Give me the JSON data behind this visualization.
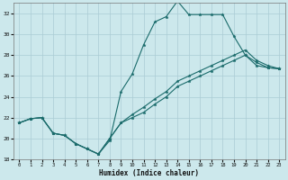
{
  "xlabel": "Humidex (Indice chaleur)",
  "bg_color": "#cce8ec",
  "grid_color": "#aaccd4",
  "line_color": "#1a6b6b",
  "xlim": [
    -0.5,
    23.5
  ],
  "ylim": [
    18,
    33
  ],
  "xticks": [
    0,
    1,
    2,
    3,
    4,
    5,
    6,
    7,
    8,
    9,
    10,
    11,
    12,
    13,
    14,
    15,
    16,
    17,
    18,
    19,
    20,
    21,
    22,
    23
  ],
  "yticks": [
    18,
    20,
    22,
    24,
    26,
    28,
    30,
    32
  ],
  "line1_x": [
    0,
    1,
    2,
    3,
    4,
    5,
    6,
    7,
    8,
    9,
    10,
    11,
    12,
    13,
    14,
    15,
    16,
    17,
    18,
    19,
    20,
    21,
    22,
    23
  ],
  "line1_y": [
    21.5,
    21.9,
    22.0,
    20.5,
    20.3,
    19.5,
    19.0,
    18.5,
    19.8,
    24.5,
    26.2,
    29.0,
    31.2,
    31.7,
    33.2,
    31.9,
    31.9,
    31.9,
    31.9,
    29.8,
    28.0,
    27.0,
    26.8,
    26.7
  ],
  "line2_x": [
    0,
    1,
    2,
    3,
    4,
    5,
    6,
    7,
    8,
    9,
    10,
    11,
    12,
    13,
    14,
    15,
    16,
    17,
    18,
    19,
    20,
    21,
    22,
    23
  ],
  "line2_y": [
    21.5,
    21.9,
    22.0,
    20.5,
    20.3,
    19.5,
    19.0,
    18.5,
    20.0,
    21.5,
    22.3,
    23.0,
    23.8,
    24.5,
    25.5,
    26.0,
    26.5,
    27.0,
    27.5,
    28.0,
    28.5,
    27.5,
    27.0,
    26.7
  ],
  "line3_x": [
    0,
    1,
    2,
    3,
    4,
    5,
    6,
    7,
    8,
    9,
    10,
    11,
    12,
    13,
    14,
    15,
    16,
    17,
    18,
    19,
    20,
    21,
    22,
    23
  ],
  "line3_y": [
    21.5,
    21.9,
    22.0,
    20.5,
    20.3,
    19.5,
    19.0,
    18.5,
    20.0,
    21.5,
    22.0,
    22.5,
    23.3,
    24.0,
    25.0,
    25.5,
    26.0,
    26.5,
    27.0,
    27.5,
    28.0,
    27.3,
    26.8,
    26.7
  ]
}
